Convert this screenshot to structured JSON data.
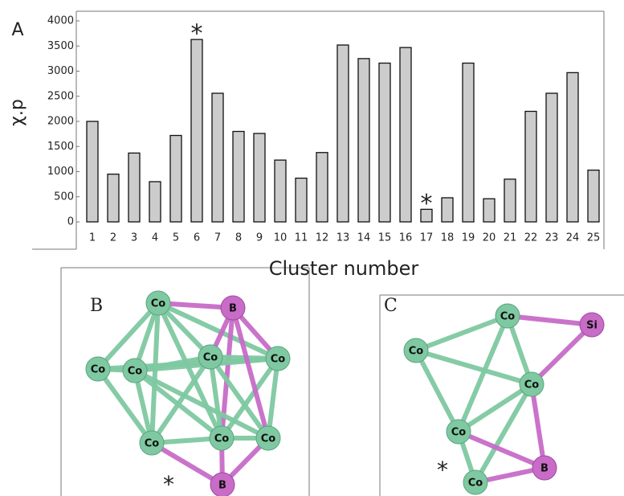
{
  "chart_data": {
    "type": "bar",
    "panel_label": "A",
    "y_label": "χ.p",
    "x_label": "Cluster number",
    "categories": [
      "1",
      "2",
      "3",
      "4",
      "5",
      "6",
      "7",
      "8",
      "9",
      "10",
      "11",
      "12",
      "13",
      "14",
      "15",
      "16",
      "17",
      "18",
      "19",
      "20",
      "21",
      "22",
      "23",
      "24",
      "25"
    ],
    "values": [
      2000,
      950,
      1370,
      800,
      1720,
      3630,
      2560,
      1800,
      1760,
      1230,
      870,
      1380,
      3520,
      3250,
      3160,
      3470,
      250,
      480,
      3160,
      460,
      850,
      2200,
      2560,
      2970,
      1030
    ],
    "color": "#cccccc",
    "ylim": [
      0,
      4000
    ],
    "yticks": [
      0,
      500,
      1000,
      1500,
      2000,
      2500,
      3000,
      3500,
      4000
    ],
    "annotations": [
      {
        "text": "*",
        "at": "6",
        "color": "#e02020"
      },
      {
        "text": "*",
        "at": "17",
        "color": "#1a1adf"
      }
    ]
  },
  "panels": [
    {
      "label": "B",
      "marker": "*",
      "marker_color": "#e02020",
      "atoms": [
        "Co",
        "B",
        "Co",
        "Co",
        "Co",
        "Co",
        "Co",
        "Co",
        "Co",
        "B"
      ]
    },
    {
      "label": "C",
      "marker": "*",
      "marker_color": "#1a1adf",
      "atoms": [
        "Co",
        "Si",
        "Co",
        "Co",
        "Co",
        "B",
        "Co"
      ]
    }
  ]
}
